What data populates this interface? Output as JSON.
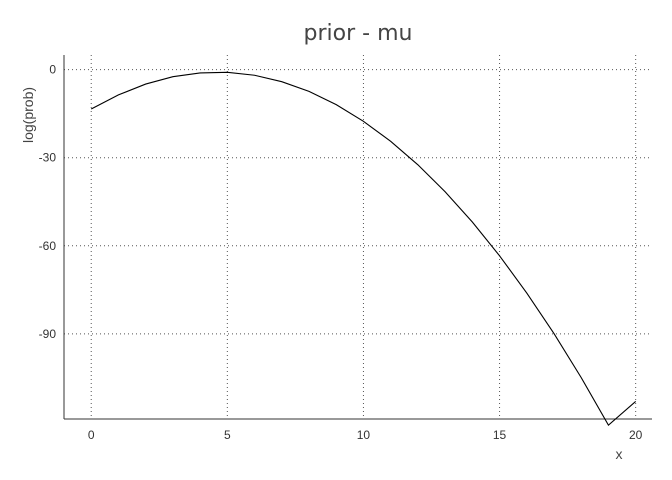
{
  "chart_data": {
    "type": "line",
    "title": "prior - mu",
    "xlabel": "x",
    "ylabel": "log(prob)",
    "xlim": [
      -1,
      20.6
    ],
    "ylim": [
      -119,
      5
    ],
    "xticks": [
      0,
      5,
      10,
      15,
      20
    ],
    "yticks": [
      0,
      -30,
      -60,
      -90
    ],
    "grid": true,
    "series": [
      {
        "color": "#000000",
        "x": [
          0,
          1,
          2,
          3,
          4,
          5,
          6,
          7,
          8,
          9,
          10,
          11,
          12,
          13,
          14,
          15,
          16,
          17,
          18,
          19,
          20
        ],
        "y": [
          -13.4,
          -8.6,
          -4.9,
          -2.4,
          -1.1,
          -0.9,
          -1.9,
          -4.1,
          -7.4,
          -11.9,
          -17.6,
          -24.4,
          -32.4,
          -41.6,
          -51.9,
          -63.4,
          -76.1,
          -89.9,
          -104.9,
          -121.1,
          -113
        ]
      }
    ]
  }
}
